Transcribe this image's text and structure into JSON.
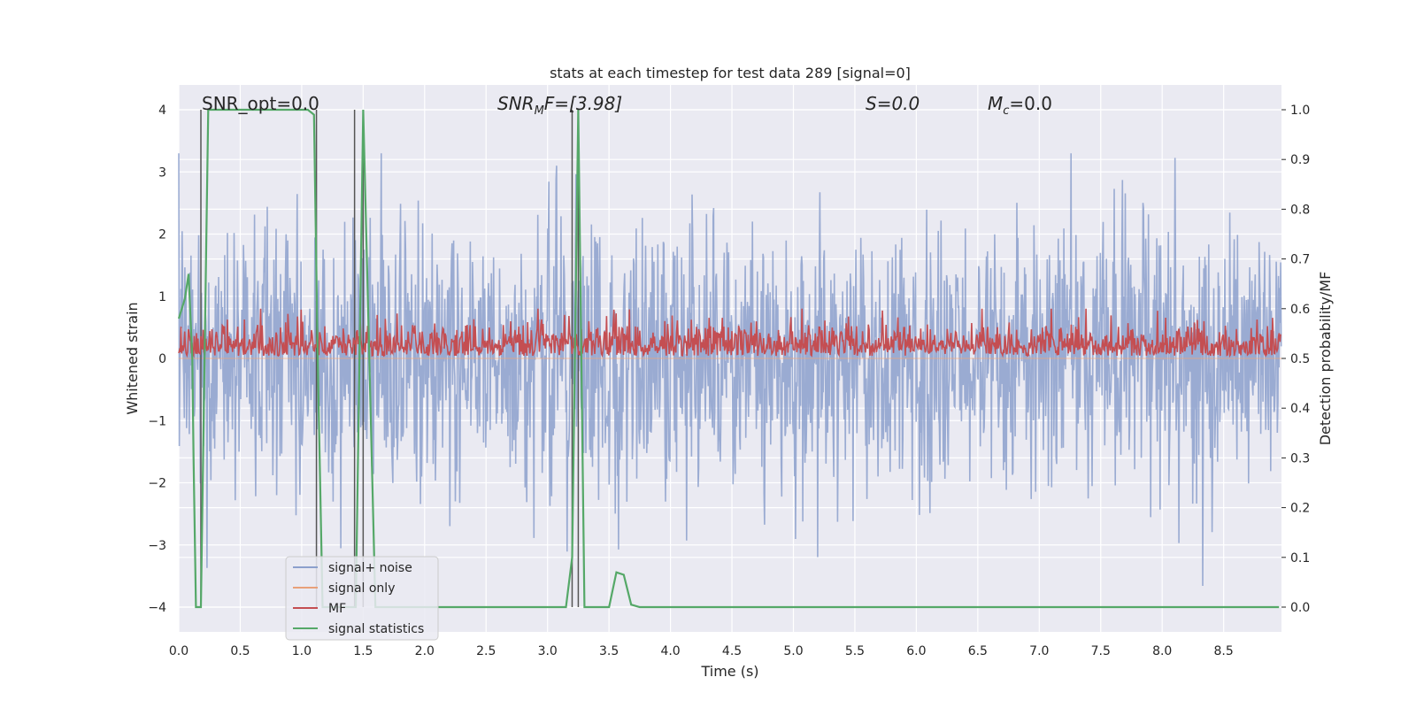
{
  "chart_data": {
    "type": "line",
    "title": "stats at each timestep for test data 289 [signal=0]",
    "xlabel": "Time (s)",
    "ylabel_left": "Whitened strain",
    "ylabel_right": "Detection probability/MF",
    "xlim": [
      0.0,
      9.0
    ],
    "ylim_left": [
      -4.4,
      4.4
    ],
    "ylim_right": [
      -0.048,
      1.048
    ],
    "x_ticks": [
      "0.0",
      "0.5",
      "1.0",
      "1.5",
      "2.0",
      "2.5",
      "3.0",
      "3.5",
      "4.0",
      "4.5",
      "5.0",
      "5.5",
      "6.0",
      "6.5",
      "7.0",
      "7.5",
      "8.0",
      "8.5"
    ],
    "y_ticks_left": [
      "4",
      "3",
      "2",
      "1",
      "0",
      "−1",
      "−2",
      "−3",
      "−4"
    ],
    "y_ticks_right": [
      "1.0",
      "0.9",
      "0.8",
      "0.7",
      "0.6",
      "0.5",
      "0.4",
      "0.3",
      "0.2",
      "0.1",
      "0.0"
    ],
    "grid": true,
    "annotations": {
      "snr_opt": "SNR_opt=0.0",
      "snr_mf_prefix": "SNR",
      "snr_mf_sub": "M",
      "snr_mf_suffix": "F=[3.98]",
      "s_label": "S=0.0",
      "mc_prefix": "M",
      "mc_sub": "c",
      "mc_suffix": "=0.0"
    },
    "legend": {
      "position": "lower-left",
      "entries": [
        {
          "label": "signal+ noise",
          "color": "#8ca0cc"
        },
        {
          "label": "signal only",
          "color": "#e8a07a"
        },
        {
          "label": "MF",
          "color": "#c44e52"
        },
        {
          "label": "signal statistics",
          "color": "#55a868"
        }
      ]
    },
    "series": [
      {
        "name": "signal+ noise",
        "axis": "left",
        "color": "#8ca0cc",
        "description_range": [
          -3.8,
          3.3
        ]
      },
      {
        "name": "signal only",
        "axis": "left",
        "color": "#e8a07a",
        "values_constant": 0.0
      },
      {
        "name": "MF",
        "axis": "right",
        "color": "#c44e52",
        "range": [
          0.5,
          0.6
        ]
      },
      {
        "name": "signal statistics",
        "axis": "right",
        "color": "#55a868",
        "x": [
          0.0,
          0.05,
          0.08,
          0.11,
          0.12,
          0.14,
          0.18,
          0.24,
          0.3,
          0.5,
          0.8,
          1.0,
          1.05,
          1.1,
          1.13,
          1.17,
          1.22,
          1.28,
          1.35,
          1.44,
          1.5,
          1.55,
          1.6,
          1.65,
          1.7,
          2.0,
          2.5,
          3.0,
          3.15,
          3.2,
          3.25,
          3.3,
          3.35,
          3.5,
          3.56,
          3.62,
          3.68,
          3.75,
          4.0,
          5.0,
          6.0,
          7.0,
          8.0,
          8.95
        ],
        "values": [
          0.58,
          0.62,
          0.67,
          0.5,
          0.3,
          0.0,
          0.0,
          1.0,
          1.0,
          1.0,
          1.0,
          1.0,
          1.0,
          0.99,
          0.5,
          0.0,
          0.0,
          0.0,
          0.0,
          0.0,
          1.0,
          0.5,
          0.0,
          0.0,
          0.0,
          0.0,
          0.0,
          0.0,
          0.0,
          0.1,
          1.0,
          0.0,
          0.0,
          0.0,
          0.07,
          0.065,
          0.005,
          0.0,
          0.0,
          0.0,
          0.0,
          0.0,
          0.0,
          0.0
        ]
      }
    ],
    "vertical_markers_x": [
      0.18,
      1.12,
      1.43,
      1.5,
      3.2,
      3.25
    ]
  }
}
